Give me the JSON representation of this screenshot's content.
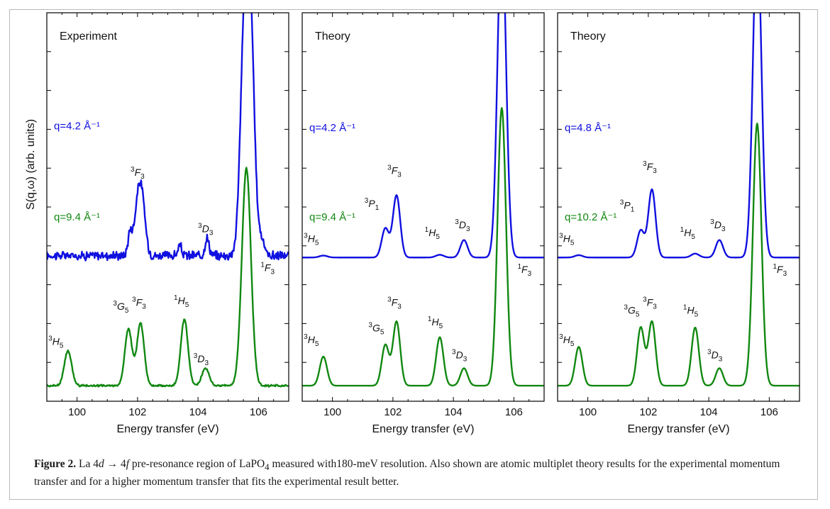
{
  "caption": {
    "label": "Figure 2.",
    "text_before": " La 4",
    "d": "d",
    "arrow": " → 4",
    "f": "f",
    "text_mid": " pre-resonance region of LaPO",
    "sub": "4",
    "text_after": " measured with180-meV resolution. Also shown are atomic multiplet theory results for the experimental momentum transfer and for a higher momentum transfer that fits the experimental result better."
  },
  "colors": {
    "upper": "#1010e0",
    "lower": "#118811",
    "axis": "#000000"
  },
  "chart_data": [
    {
      "type": "line",
      "title": "Experiment",
      "xlabel": "Energy transfer (eV)",
      "ylabel": "S(q,ω) (arb. units)",
      "xlim": [
        99,
        107
      ],
      "ylim": [
        0,
        10
      ],
      "xticks": [
        100,
        102,
        104,
        106
      ],
      "grid": false,
      "series": [
        {
          "name": "q=4.2 Å⁻¹",
          "color": "#1010e0",
          "baseline": 3.75,
          "noise": 0.09,
          "peaks": [
            [
              101.75,
              0.55,
              0.07
            ],
            [
              102.05,
              1.7,
              0.13
            ],
            [
              102.2,
              0.5,
              0.1
            ],
            [
              103.4,
              0.25,
              0.06
            ],
            [
              104.3,
              0.45,
              0.07
            ],
            [
              105.55,
              6.0,
              0.14
            ],
            [
              105.75,
              4.7,
              0.13
            ],
            [
              106.1,
              0.4,
              0.1
            ]
          ],
          "labels": [
            {
              "sup": "3",
              "term": "F",
              "sub": "3",
              "x": 102.0,
              "y": 5.8
            },
            {
              "sup": "3",
              "term": "D",
              "sub": "3",
              "x": 104.25,
              "y": 4.35
            },
            {
              "sup": "1",
              "term": "F",
              "sub": "3",
              "x": 106.3,
              "y": 3.35
            }
          ]
        },
        {
          "name": "q=9.4 Å⁻¹",
          "color": "#118811",
          "baseline": 0.4,
          "noise": 0.02,
          "peaks": [
            [
              99.7,
              0.9,
              0.12
            ],
            [
              101.7,
              1.45,
              0.12
            ],
            [
              102.1,
              1.6,
              0.12
            ],
            [
              103.55,
              1.7,
              0.12
            ],
            [
              104.25,
              0.45,
              0.12
            ],
            [
              105.6,
              5.6,
              0.15
            ]
          ],
          "labels": [
            {
              "sup": "3",
              "term": "H",
              "sub": "5",
              "x": 99.3,
              "y": 1.45
            },
            {
              "sup": "3",
              "term": "G",
              "sub": "5",
              "x": 101.45,
              "y": 2.35
            },
            {
              "sup": "3",
              "term": "F",
              "sub": "3",
              "x": 102.05,
              "y": 2.45
            },
            {
              "sup": "1",
              "term": "H",
              "sub": "5",
              "x": 103.45,
              "y": 2.5
            },
            {
              "sup": "3",
              "term": "D",
              "sub": "3",
              "x": 104.1,
              "y": 1.0
            }
          ]
        }
      ]
    },
    {
      "type": "line",
      "title": "Theory",
      "xlabel": "Energy transfer (eV)",
      "xlim": [
        99,
        107
      ],
      "ylim": [
        0,
        10
      ],
      "xticks": [
        100,
        102,
        104,
        106
      ],
      "grid": false,
      "series": [
        {
          "name": "q=4.2 Å⁻¹",
          "color": "#1010e0",
          "baseline": 3.7,
          "noise": 0,
          "peaks": [
            [
              99.7,
              0.05,
              0.13
            ],
            [
              101.75,
              0.75,
              0.12
            ],
            [
              102.12,
              1.6,
              0.12
            ],
            [
              103.55,
              0.07,
              0.13
            ],
            [
              104.35,
              0.45,
              0.12
            ],
            [
              105.6,
              8.5,
              0.14
            ]
          ],
          "labels": [
            {
              "sup": "3",
              "term": "H",
              "sub": "5",
              "x": 99.3,
              "y": 4.1
            },
            {
              "sup": "3",
              "term": "P",
              "sub": "1",
              "x": 101.3,
              "y": 5.0
            },
            {
              "sup": "3",
              "term": "F",
              "sub": "3",
              "x": 102.05,
              "y": 5.85
            },
            {
              "sup": "1",
              "term": "H",
              "sub": "5",
              "x": 103.3,
              "y": 4.25
            },
            {
              "sup": "3",
              "term": "D",
              "sub": "3",
              "x": 104.3,
              "y": 4.45
            },
            {
              "sup": "1",
              "term": "F",
              "sub": "3",
              "x": 106.35,
              "y": 3.3
            }
          ]
        },
        {
          "name": "q=9.4 Å⁻¹",
          "color": "#118811",
          "baseline": 0.4,
          "noise": 0,
          "peaks": [
            [
              99.7,
              0.75,
              0.12
            ],
            [
              101.75,
              1.05,
              0.12
            ],
            [
              102.12,
              1.65,
              0.12
            ],
            [
              103.55,
              1.25,
              0.12
            ],
            [
              104.35,
              0.45,
              0.12
            ],
            [
              105.6,
              7.15,
              0.14
            ]
          ],
          "labels": [
            {
              "sup": "3",
              "term": "H",
              "sub": "5",
              "x": 99.3,
              "y": 1.5
            },
            {
              "sup": "3",
              "term": "G",
              "sub": "5",
              "x": 101.45,
              "y": 1.8
            },
            {
              "sup": "3",
              "term": "F",
              "sub": "3",
              "x": 102.05,
              "y": 2.45
            },
            {
              "sup": "1",
              "term": "H",
              "sub": "5",
              "x": 103.4,
              "y": 1.95
            },
            {
              "sup": "3",
              "term": "D",
              "sub": "3",
              "x": 104.2,
              "y": 1.1
            }
          ]
        }
      ]
    },
    {
      "type": "line",
      "title": "Theory",
      "xlabel": "Energy transfer (eV)",
      "xlim": [
        99,
        107
      ],
      "ylim": [
        0,
        10
      ],
      "xticks": [
        100,
        102,
        104,
        106
      ],
      "grid": false,
      "series": [
        {
          "name": "q=4.8 Å⁻¹",
          "color": "#1010e0",
          "baseline": 3.7,
          "noise": 0,
          "peaks": [
            [
              99.7,
              0.06,
              0.13
            ],
            [
              101.75,
              0.7,
              0.12
            ],
            [
              102.12,
              1.75,
              0.12
            ],
            [
              103.55,
              0.1,
              0.13
            ],
            [
              104.35,
              0.45,
              0.12
            ],
            [
              105.6,
              8.4,
              0.14
            ]
          ],
          "labels": [
            {
              "sup": "3",
              "term": "H",
              "sub": "5",
              "x": 99.3,
              "y": 4.1
            },
            {
              "sup": "3",
              "term": "P",
              "sub": "1",
              "x": 101.3,
              "y": 4.95
            },
            {
              "sup": "3",
              "term": "F",
              "sub": "3",
              "x": 102.05,
              "y": 5.95
            },
            {
              "sup": "1",
              "term": "H",
              "sub": "5",
              "x": 103.3,
              "y": 4.25
            },
            {
              "sup": "3",
              "term": "D",
              "sub": "3",
              "x": 104.3,
              "y": 4.45
            },
            {
              "sup": "1",
              "term": "F",
              "sub": "3",
              "x": 106.35,
              "y": 3.3
            }
          ]
        },
        {
          "name": "q=10.2 Å⁻¹",
          "color": "#118811",
          "baseline": 0.4,
          "noise": 0,
          "peaks": [
            [
              99.7,
              1.0,
              0.12
            ],
            [
              101.75,
              1.5,
              0.12
            ],
            [
              102.12,
              1.65,
              0.12
            ],
            [
              103.55,
              1.5,
              0.12
            ],
            [
              104.35,
              0.45,
              0.12
            ],
            [
              105.6,
              6.75,
              0.14
            ]
          ],
          "labels": [
            {
              "sup": "3",
              "term": "H",
              "sub": "5",
              "x": 99.3,
              "y": 1.5
            },
            {
              "sup": "3",
              "term": "G",
              "sub": "5",
              "x": 101.45,
              "y": 2.25
            },
            {
              "sup": "3",
              "term": "F",
              "sub": "3",
              "x": 102.05,
              "y": 2.45
            },
            {
              "sup": "1",
              "term": "H",
              "sub": "5",
              "x": 103.4,
              "y": 2.25
            },
            {
              "sup": "3",
              "term": "D",
              "sub": "3",
              "x": 104.2,
              "y": 1.1
            }
          ]
        }
      ]
    }
  ]
}
